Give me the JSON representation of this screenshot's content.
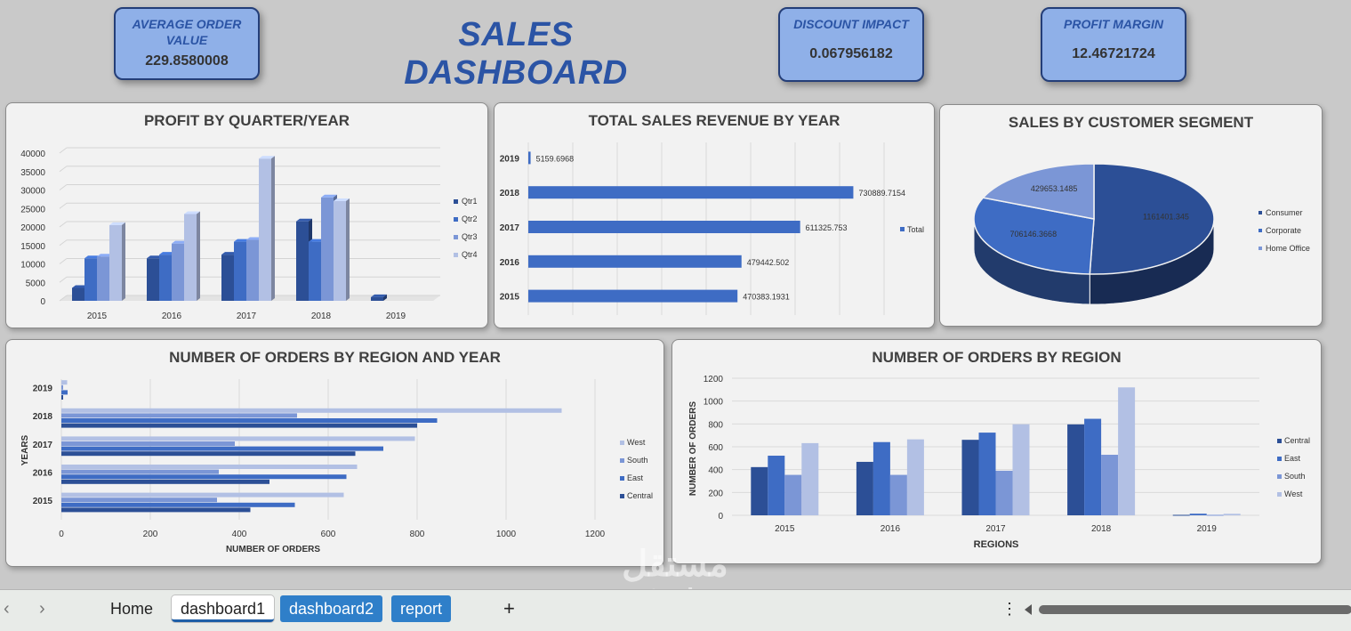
{
  "header": {
    "title": "SALES DASHBOARD",
    "kpis": [
      {
        "label": "AVERAGE ORDER VALUE",
        "value": "229.8580008"
      },
      {
        "label": "DISCOUNT IMPACT",
        "value": "0.067956182"
      },
      {
        "label": "PROFIT MARGIN",
        "value": "12.46721724"
      }
    ]
  },
  "colors": {
    "dark": "#2c4f96",
    "mid": "#3e6cc4",
    "light": "#7b96d6",
    "pale": "#b2c0e4",
    "title": "#2b54a5"
  },
  "charts": {
    "profit_title": "PROFIT BY QUARTER/YEAR",
    "revenue_title": "TOTAL SALES REVENUE BY YEAR",
    "segment_title": "SALES BY CUSTOMER SEGMENT",
    "orders_ry_title": "NUMBER OF ORDERS BY REGION AND YEAR",
    "orders_r_title": "NUMBER OF ORDERS BY REGION"
  },
  "chart_data": [
    {
      "type": "bar",
      "title": "PROFIT BY QUARTER/YEAR",
      "categories": [
        "2015",
        "2016",
        "2017",
        "2018",
        "2019"
      ],
      "series": [
        {
          "name": "Qtr1",
          "values": [
            3500,
            11500,
            12500,
            21500,
            1000
          ]
        },
        {
          "name": "Qtr2",
          "values": [
            11500,
            12500,
            16000,
            16000,
            0
          ]
        },
        {
          "name": "Qtr3",
          "values": [
            12000,
            15500,
            16500,
            28000,
            0
          ]
        },
        {
          "name": "Qtr4",
          "values": [
            20500,
            23500,
            38500,
            27000,
            0
          ]
        }
      ],
      "yticks": [
        "40000",
        "35000",
        "30000",
        "25000",
        "20000",
        "15000",
        "10000",
        "5000",
        "0"
      ],
      "ylim": [
        0,
        40000
      ]
    },
    {
      "type": "bar",
      "title": "TOTAL SALES REVENUE BY YEAR",
      "categories": [
        "2019",
        "2018",
        "2017",
        "2016",
        "2015"
      ],
      "series": [
        {
          "name": "Total",
          "values": [
            5159.6968,
            730889.7154,
            611325.753,
            479442.502,
            470383.1931
          ]
        }
      ],
      "labels": [
        "5159.6968",
        "730889.7154",
        "611325.753",
        "479442.502",
        "470383.1931"
      ],
      "xlim": [
        0,
        800000
      ]
    },
    {
      "type": "pie",
      "title": "SALES BY CUSTOMER SEGMENT",
      "categories": [
        "Consumer",
        "Corporate",
        "Home Office"
      ],
      "values": [
        1161401.345,
        706146.3668,
        429653.1485
      ],
      "labels": [
        "1161401.345",
        "706146.3668",
        "429653.1485"
      ]
    },
    {
      "type": "bar",
      "title": "NUMBER OF ORDERS BY REGION AND YEAR",
      "categories": [
        "2015",
        "2016",
        "2017",
        "2018",
        "2019"
      ],
      "series": [
        {
          "name": "Central",
          "values": [
            425,
            468,
            661,
            800,
            4
          ]
        },
        {
          "name": "East",
          "values": [
            525,
            641,
            724,
            845,
            14
          ]
        },
        {
          "name": "South",
          "values": [
            350,
            354,
            390,
            530,
            4
          ]
        },
        {
          "name": "West",
          "values": [
            635,
            665,
            795,
            1125,
            13
          ]
        }
      ],
      "xticks": [
        "0",
        "200",
        "400",
        "600",
        "800",
        "1000",
        "1200"
      ],
      "xlim": [
        0,
        1200
      ],
      "xlabel": "NUMBER OF ORDERS",
      "ylabel": "YEARS"
    },
    {
      "type": "bar",
      "title": "NUMBER OF ORDERS BY REGION",
      "categories": [
        "2015",
        "2016",
        "2017",
        "2018",
        "2019"
      ],
      "series": [
        {
          "name": "Central",
          "values": [
            422,
            468,
            661,
            796,
            4
          ]
        },
        {
          "name": "East",
          "values": [
            522,
            641,
            724,
            845,
            14
          ]
        },
        {
          "name": "South",
          "values": [
            354,
            354,
            390,
            530,
            4
          ]
        },
        {
          "name": "West",
          "values": [
            632,
            665,
            797,
            1120,
            13
          ]
        }
      ],
      "yticks": [
        "1200",
        "1000",
        "800",
        "600",
        "400",
        "200",
        "0"
      ],
      "ylim": [
        0,
        1200
      ],
      "xlabel": "REGIONS",
      "ylabel": "NUMBER OF ORDERS"
    }
  ],
  "tabs": {
    "home": "Home",
    "dashboard1": "dashboard1",
    "dashboard2": "dashboard2",
    "report": "report",
    "add": "+",
    "more": "⋮",
    "prev": "‹",
    "next": "›"
  },
  "watermark": {
    "arabic": "مستقل",
    "latin": "mostaql.com"
  }
}
